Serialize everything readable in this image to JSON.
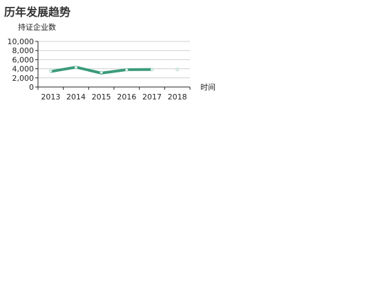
{
  "chart_data": {
    "type": "line",
    "title": "历年发展趋势",
    "ylabel": "持证企业数",
    "xlabel": "时间",
    "categories": [
      "2013",
      "2014",
      "2015",
      "2016",
      "2017",
      "2018"
    ],
    "ylim": [
      0,
      10000
    ],
    "yticks": [
      "0",
      "2,000",
      "4,000",
      "6,000",
      "8,000",
      "10,000"
    ],
    "ytick_values": [
      0,
      2000,
      4000,
      6000,
      8000,
      10000
    ],
    "grid": true,
    "series": [
      {
        "color": "#3a9b7a",
        "values": [
          3400,
          4350,
          3050,
          3800,
          3850,
          null
        ],
        "markers": [
          3500,
          4300,
          3200,
          3750,
          3850,
          3850
        ]
      }
    ]
  }
}
